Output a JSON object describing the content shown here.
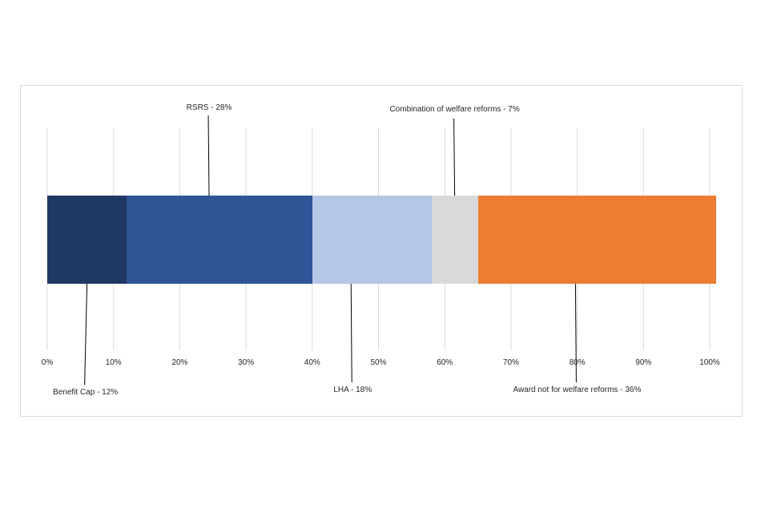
{
  "chart_data": {
    "type": "bar",
    "orientation": "horizontal",
    "stacked": true,
    "normalized_100_percent": true,
    "title": "",
    "xlabel": "",
    "ylabel": "",
    "xlim": [
      0,
      100
    ],
    "grid": "vertical",
    "legend": "none",
    "x_ticks": [
      "0%",
      "10%",
      "20%",
      "30%",
      "40%",
      "50%",
      "60%",
      "70%",
      "80%",
      "90%",
      "100%"
    ],
    "series": [
      {
        "name": "Benefit Cap",
        "value": 12,
        "label": "Benefit Cap - 12%",
        "color": "#203864",
        "label_side": "below"
      },
      {
        "name": "RSRS",
        "value": 28,
        "label": "RSRS - 28%",
        "color": "#2F5597",
        "label_side": "above"
      },
      {
        "name": "LHA",
        "value": 18,
        "label": "LHA - 18%",
        "color": "#B4C7E7",
        "label_side": "below"
      },
      {
        "name": "Combination of welfare reforms",
        "value": 7,
        "label": "Combination of welfare reforms - 7%",
        "color": "#D9D9D9",
        "label_side": "above"
      },
      {
        "name": "Award not for welfare reforms",
        "value": 36,
        "label": "Award not for welfare reforms - 36%",
        "color": "#ED7D31",
        "label_side": "below"
      }
    ]
  }
}
